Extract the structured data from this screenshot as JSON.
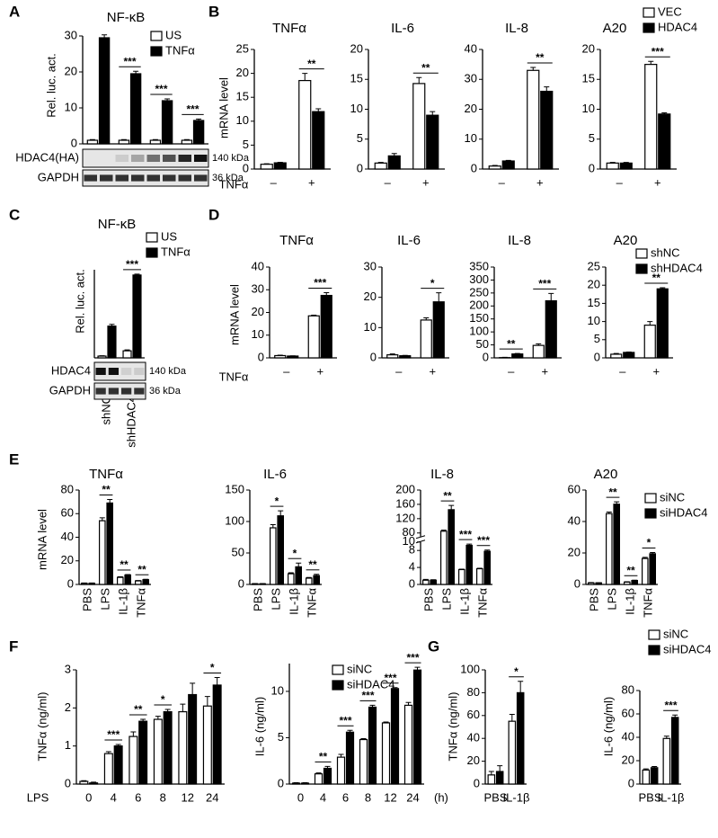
{
  "chart_data": [
    {
      "type": "bar",
      "panel": "A",
      "title": "NF-κB",
      "ylabel": "Rel. luc. act.",
      "categories": [
        null,
        null,
        null,
        null
      ],
      "series": [
        {
          "name": "US",
          "color": "#ffffff",
          "values": [
            1,
            1,
            1,
            1
          ],
          "errors": [
            0.2,
            0.2,
            0.2,
            0.2
          ]
        },
        {
          "name": "TNFα",
          "color": "#000000",
          "values": [
            29.5,
            19.5,
            12,
            6.5
          ],
          "errors": [
            0.8,
            0.7,
            0.5,
            0.4
          ]
        }
      ],
      "sig": [
        null,
        "***",
        "***",
        "***"
      ],
      "ylim": [
        0,
        30
      ],
      "yticks": [
        0,
        10,
        20,
        30
      ],
      "legend": "upper right",
      "blot": {
        "rows": [
          "HDAC4(HA)",
          "GAPDH"
        ],
        "sizes": [
          "140 kDa",
          "36 kDa"
        ]
      }
    },
    {
      "type": "bar",
      "panel": "B",
      "title": "TNFα",
      "ylabel": "mRNA level",
      "xlabel": "TNFα",
      "categories": [
        "–",
        "+"
      ],
      "series": [
        {
          "name": "VEC",
          "color": "#ffffff",
          "values": [
            1,
            18.5
          ],
          "errors": [
            0.1,
            1.5
          ]
        },
        {
          "name": "HDAC4",
          "color": "#000000",
          "values": [
            1.3,
            12
          ],
          "errors": [
            0.1,
            0.6
          ]
        }
      ],
      "sig": [
        null,
        "**"
      ],
      "ylim": [
        0,
        25
      ],
      "yticks": [
        0,
        5,
        10,
        15,
        20,
        25
      ]
    },
    {
      "type": "bar",
      "title": "IL-6",
      "categories": [
        "–",
        "+"
      ],
      "series": [
        {
          "name": "VEC",
          "color": "#ffffff",
          "values": [
            1,
            14.3
          ],
          "errors": [
            0.1,
            1.0
          ]
        },
        {
          "name": "HDAC4",
          "color": "#000000",
          "values": [
            2.2,
            9
          ],
          "errors": [
            0.4,
            0.6
          ]
        }
      ],
      "sig": [
        null,
        "**"
      ],
      "ylim": [
        0,
        20
      ],
      "yticks": [
        0,
        5,
        10,
        15,
        20
      ]
    },
    {
      "type": "bar",
      "title": "IL-8",
      "categories": [
        "–",
        "+"
      ],
      "series": [
        {
          "name": "VEC",
          "color": "#ffffff",
          "values": [
            1,
            33
          ],
          "errors": [
            0.2,
            1.0
          ]
        },
        {
          "name": "HDAC4",
          "color": "#000000",
          "values": [
            2.7,
            26
          ],
          "errors": [
            0.2,
            1.5
          ]
        }
      ],
      "sig": [
        null,
        "**"
      ],
      "ylim": [
        0,
        40
      ],
      "yticks": [
        0,
        10,
        20,
        30,
        40
      ]
    },
    {
      "type": "bar",
      "title": "A20",
      "categories": [
        "–",
        "+"
      ],
      "series": [
        {
          "name": "VEC",
          "color": "#ffffff",
          "values": [
            1,
            17.5
          ],
          "errors": [
            0.1,
            0.5
          ]
        },
        {
          "name": "HDAC4",
          "color": "#000000",
          "values": [
            1,
            9.2
          ],
          "errors": [
            0.1,
            0.2
          ]
        }
      ],
      "sig": [
        null,
        "***"
      ],
      "ylim": [
        0,
        20
      ],
      "yticks": [
        0,
        5,
        10,
        15,
        20
      ],
      "legend": "upper right"
    },
    {
      "type": "bar",
      "panel": "C",
      "title": "NF-κB",
      "ylabel": "Rel. luc. act.",
      "categories": [
        "shNC",
        "shHDAC4"
      ],
      "x_label_rotation": 90,
      "series": [
        {
          "name": "US",
          "color": "#ffffff",
          "values": [
            1,
            4
          ],
          "errors": [
            0.2,
            0.5
          ]
        },
        {
          "name": "TNFα",
          "color": "#000000",
          "values": [
            18,
            47
          ],
          "errors": [
            1,
            0.5
          ]
        }
      ],
      "sig": [
        null,
        "***"
      ],
      "ylim": [
        0,
        50
      ],
      "legend": "upper right",
      "blot": {
        "rows": [
          "HDAC4",
          "GAPDH"
        ],
        "sizes": [
          "140 kDa",
          "36 kDa"
        ]
      }
    },
    {
      "type": "bar",
      "panel": "D",
      "title": "TNFα",
      "ylabel": "mRNA level",
      "xlabel": "TNFα",
      "categories": [
        "–",
        "+"
      ],
      "series": [
        {
          "name": "shNC",
          "color": "#ffffff",
          "values": [
            1,
            18.5
          ],
          "errors": [
            0.2,
            0.3
          ]
        },
        {
          "name": "shHDAC4",
          "color": "#000000",
          "values": [
            0.8,
            27.5
          ],
          "errors": [
            0.1,
            1.2
          ]
        }
      ],
      "sig": [
        null,
        "***"
      ],
      "ylim": [
        0,
        40
      ],
      "yticks": [
        0,
        10,
        20,
        30,
        40
      ]
    },
    {
      "type": "bar",
      "title": "IL-6",
      "categories": [
        "–",
        "+"
      ],
      "series": [
        {
          "name": "shNC",
          "color": "#ffffff",
          "values": [
            1,
            12.5
          ],
          "errors": [
            0.3,
            0.7
          ]
        },
        {
          "name": "shHDAC4",
          "color": "#000000",
          "values": [
            0.7,
            18.5
          ],
          "errors": [
            0.1,
            3
          ]
        }
      ],
      "sig": [
        null,
        "*"
      ],
      "ylim": [
        0,
        30
      ],
      "yticks": [
        0,
        10,
        20,
        30
      ]
    },
    {
      "type": "bar",
      "title": "IL-8",
      "categories": [
        "–",
        "+"
      ],
      "series": [
        {
          "name": "shNC",
          "color": "#ffffff",
          "values": [
            1,
            48
          ],
          "errors": [
            1,
            6
          ]
        },
        {
          "name": "shHDAC4",
          "color": "#000000",
          "values": [
            15,
            220
          ],
          "errors": [
            2,
            28
          ]
        }
      ],
      "sig": [
        "**",
        "***"
      ],
      "ylim": [
        0,
        350
      ],
      "yticks": [
        0,
        50,
        100,
        150,
        200,
        250,
        300,
        350
      ]
    },
    {
      "type": "bar",
      "title": "A20",
      "categories": [
        "–",
        "+"
      ],
      "series": [
        {
          "name": "shNC",
          "color": "#ffffff",
          "values": [
            1,
            9
          ],
          "errors": [
            0.2,
            1
          ]
        },
        {
          "name": "shHDAC4",
          "color": "#000000",
          "values": [
            1.5,
            19
          ],
          "errors": [
            0.1,
            0.3
          ]
        }
      ],
      "sig": [
        null,
        "**"
      ],
      "ylim": [
        0,
        25
      ],
      "yticks": [
        0,
        5,
        10,
        15,
        20,
        25
      ],
      "legend": "upper right"
    },
    {
      "type": "bar",
      "panel": "E",
      "title": "TNFα",
      "ylabel": "mRNA level",
      "categories": [
        "PBS",
        "LPS",
        "IL-1β",
        "TNFα"
      ],
      "x_label_rotation": 90,
      "series": [
        {
          "name": "siNC",
          "color": "#ffffff",
          "values": [
            1,
            54,
            6,
            3
          ],
          "errors": [
            0.2,
            2.5,
            0.5,
            0.3
          ]
        },
        {
          "name": "siHDAC4",
          "color": "#000000",
          "values": [
            1,
            69,
            8,
            4
          ],
          "errors": [
            0.2,
            3,
            0.4,
            0.4
          ]
        }
      ],
      "sig": [
        null,
        "**",
        "**",
        "**"
      ],
      "ylim": [
        0,
        80
      ],
      "yticks": [
        0,
        20,
        40,
        60,
        80
      ]
    },
    {
      "type": "bar",
      "title": "IL-6",
      "categories": [
        "PBS",
        "LPS",
        "IL-1β",
        "TNFα"
      ],
      "x_label_rotation": 90,
      "series": [
        {
          "name": "siNC",
          "color": "#ffffff",
          "values": [
            1,
            90,
            17,
            10
          ],
          "errors": [
            0.5,
            5,
            1.5,
            1
          ]
        },
        {
          "name": "siHDAC4",
          "color": "#000000",
          "values": [
            1,
            109,
            28,
            14
          ],
          "errors": [
            0.5,
            8,
            6,
            2
          ]
        }
      ],
      "sig": [
        null,
        "*",
        "*",
        "**"
      ],
      "ylim": [
        0,
        150
      ],
      "yticks": [
        0,
        50,
        100,
        150
      ]
    },
    {
      "type": "bar",
      "title": "IL-8",
      "categories": [
        "PBS",
        "LPS",
        "IL-1β",
        "TNFα"
      ],
      "x_label_rotation": 90,
      "series": [
        {
          "name": "siNC",
          "color": "#ffffff",
          "values": [
            1,
            85,
            3.5,
            3.7
          ],
          "errors": [
            0.2,
            3,
            0.1,
            0.1
          ]
        },
        {
          "name": "siHDAC4",
          "color": "#000000",
          "values": [
            1,
            145,
            9.2,
            7.8
          ],
          "errors": [
            0.1,
            12,
            0.3,
            0.3
          ]
        }
      ],
      "sig": [
        null,
        "**",
        "***",
        "***"
      ],
      "ylim": [
        0,
        200
      ],
      "axis_break": [
        10,
        70
      ],
      "yticks": [
        0,
        4,
        8,
        10,
        80,
        120,
        160,
        200
      ]
    },
    {
      "type": "bar",
      "title": "A20",
      "categories": [
        "PBS",
        "LPS",
        "IL-1β",
        "TNFα"
      ],
      "x_label_rotation": 90,
      "series": [
        {
          "name": "siNC",
          "color": "#ffffff",
          "values": [
            1,
            45,
            1.5,
            16.5
          ],
          "errors": [
            0.2,
            1,
            0.2,
            0.7
          ]
        },
        {
          "name": "siHDAC4",
          "color": "#000000",
          "values": [
            1,
            51,
            2.5,
            19.5
          ],
          "errors": [
            0.1,
            1.5,
            0.2,
            0.8
          ]
        }
      ],
      "sig": [
        null,
        "**",
        "**",
        "*"
      ],
      "ylim": [
        0,
        60
      ],
      "yticks": [
        0,
        20,
        40,
        60
      ],
      "legend": "upper right"
    },
    {
      "type": "bar",
      "panel": "F",
      "ylabel": "TNFα (ng/ml)",
      "xlabel": "LPS",
      "categories": [
        "0",
        "4",
        "6",
        "8",
        "12",
        "24"
      ],
      "series": [
        {
          "name": "siNC",
          "color": "#ffffff",
          "values": [
            0.07,
            0.8,
            1.25,
            1.7,
            1.9,
            2.05
          ],
          "errors": [
            0.02,
            0.05,
            0.12,
            0.08,
            0.2,
            0.25
          ]
        },
        {
          "name": "siHDAC4",
          "color": "#000000",
          "values": [
            0.03,
            1.0,
            1.65,
            1.9,
            2.35,
            2.6
          ],
          "errors": [
            0.02,
            0.04,
            0.05,
            0.06,
            0.3,
            0.2
          ]
        }
      ],
      "sig": [
        null,
        "***",
        "**",
        "*",
        null,
        "*"
      ],
      "ylim": [
        0,
        3
      ],
      "yticks": [
        0,
        1,
        2,
        3
      ]
    },
    {
      "type": "bar",
      "ylabel": "IL-6 (ng/ml)",
      "xunit": "(h)",
      "categories": [
        "0",
        "4",
        "6",
        "8",
        "12",
        "24"
      ],
      "series": [
        {
          "name": "siNC",
          "color": "#ffffff",
          "values": [
            0.1,
            1.1,
            2.9,
            4.8,
            6.6,
            8.5
          ],
          "errors": [
            0.05,
            0.1,
            0.3,
            0.1,
            0.1,
            0.3
          ]
        },
        {
          "name": "siHDAC4",
          "color": "#000000",
          "values": [
            0.1,
            1.7,
            5.6,
            8.3,
            10.3,
            12.3
          ],
          "errors": [
            0.05,
            0.2,
            0.2,
            0.2,
            0.1,
            0.3
          ]
        }
      ],
      "sig": [
        null,
        "**",
        "***",
        "***",
        "***",
        "***"
      ],
      "ylim": [
        0,
        13
      ],
      "yticks": [
        0,
        5,
        10
      ],
      "legend": "upper right"
    },
    {
      "type": "bar",
      "panel": "G",
      "ylabel": "TNFα (ng/ml)",
      "categories": [
        "PBS",
        "IL-1β"
      ],
      "series": [
        {
          "name": "siNC",
          "color": "#ffffff",
          "values": [
            8,
            55
          ],
          "errors": [
            3,
            6
          ]
        },
        {
          "name": "siHDAC4",
          "color": "#000000",
          "values": [
            11,
            80
          ],
          "errors": [
            5,
            10
          ]
        }
      ],
      "sig": [
        null,
        "*"
      ],
      "ylim": [
        0,
        100
      ],
      "yticks": [
        0,
        20,
        40,
        60,
        80,
        100
      ]
    },
    {
      "type": "bar",
      "ylabel": "IL-6 (ng/ml)",
      "categories": [
        "PBS",
        "IL-1β"
      ],
      "series": [
        {
          "name": "siNC",
          "color": "#ffffff",
          "values": [
            12,
            39
          ],
          "errors": [
            1,
            2
          ]
        },
        {
          "name": "siHDAC4",
          "color": "#000000",
          "values": [
            14,
            57
          ],
          "errors": [
            1,
            2
          ]
        }
      ],
      "sig": [
        null,
        "***"
      ],
      "ylim": [
        0,
        80
      ],
      "yticks": [
        0,
        20,
        40,
        60,
        80
      ],
      "legend": "upper right"
    }
  ]
}
